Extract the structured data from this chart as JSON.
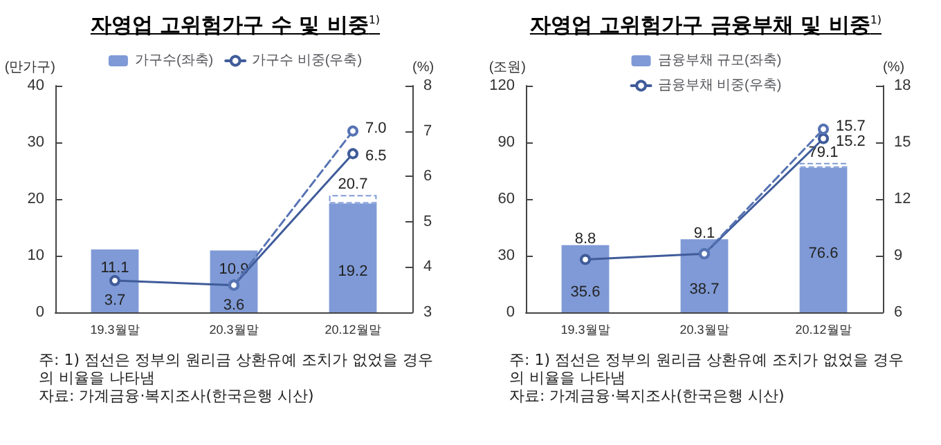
{
  "chart_data": [
    {
      "type": "bar",
      "title": "자영업 고위험가구 수 및 비중$^{1)}$",
      "ylabel": "(만가구)",
      "y2label": "(%)",
      "categories": [
        "19.3월말",
        "20.3월말",
        "20.12월말"
      ],
      "stacked": true,
      "series": [
        {
          "name": "가구수(좌축)",
          "color": "#7f9ad6",
          "values": [
            11.1,
            10.9,
            19.2
          ],
          "value_labels": [
            "11.1",
            "10.9",
            "19.2"
          ]
        },
        {
          "color": "#ffffff",
          "values": [
            null,
            null,
            1.5
          ]
        },
        {
          "type": "line",
          "axis": "y2",
          "name": "가구수 비중(우축)",
          "color": "#3f5b9a",
          "line_style": "solid",
          "values": [
            3.7,
            3.6,
            6.5
          ],
          "value_labels": [
            "3.7",
            "3.6",
            "6.5"
          ]
        },
        {
          "type": "line",
          "axis": "y2",
          "color": "#5673b3",
          "line_style": "dashed",
          "values": [
            null,
            3.6,
            7.0
          ],
          "value_labels": [
            null,
            null,
            "7.0"
          ]
        }
      ],
      "totals": [
        null,
        null,
        "20.7"
      ],
      "ylim": [
        0,
        40
      ],
      "yticks": [
        0,
        10,
        20,
        30,
        40
      ],
      "y2lim": [
        3,
        8
      ],
      "y2ticks": [
        3,
        4,
        5,
        6,
        7,
        8
      ],
      "grid": false,
      "legend": "top",
      "marker": "circle",
      "annotations": [
        "주: 1) 점선은 정부의 원리금 상환유예 조치가 없었을 경우의 비율을 나타냄",
        "자료: 가계금융·복지조사(한국은행 시산)"
      ]
    },
    {
      "type": "bar",
      "title": "자영업 고위험가구 금융부채 및 비중$^{1)}$",
      "ylabel": "(조원)",
      "y2label": "(%)",
      "categories": [
        "19.3월말",
        "20.3월말",
        "20.12월말"
      ],
      "stacked": true,
      "series": [
        {
          "name": "금융부채 규모(좌축)",
          "color": "#7f9ad6",
          "values": [
            35.6,
            38.7,
            76.6
          ],
          "value_labels": [
            "35.6",
            "38.7",
            "76.6"
          ]
        },
        {
          "color": "#ffffff",
          "values": [
            null,
            null,
            2.5
          ]
        },
        {
          "type": "line",
          "axis": "y2",
          "name": "금융부채 비중(우축)",
          "color": "#3f5b9a",
          "line_style": "solid",
          "values": [
            8.8,
            9.1,
            15.2
          ],
          "value_labels": [
            "8.8",
            "9.1",
            "15.2"
          ]
        },
        {
          "type": "line",
          "axis": "y2",
          "color": "#5673b3",
          "line_style": "dashed",
          "values": [
            null,
            9.1,
            15.7
          ],
          "value_labels": [
            null,
            null,
            "15.7"
          ]
        }
      ],
      "totals": [
        null,
        null,
        "79.1"
      ],
      "ylim": [
        0,
        120
      ],
      "yticks": [
        0,
        30,
        60,
        90,
        120
      ],
      "y2lim": [
        6,
        18
      ],
      "y2ticks": [
        6,
        9,
        12,
        15,
        18
      ],
      "grid": false,
      "legend": "top",
      "marker": "circle",
      "annotations": [
        "주: 1) 점선은 정부의 원리금 상환유예 조치가 없었을 경우의 비율을 나타냄",
        "자료: 가계금융·복지조사(한국은행 시산)"
      ]
    }
  ]
}
